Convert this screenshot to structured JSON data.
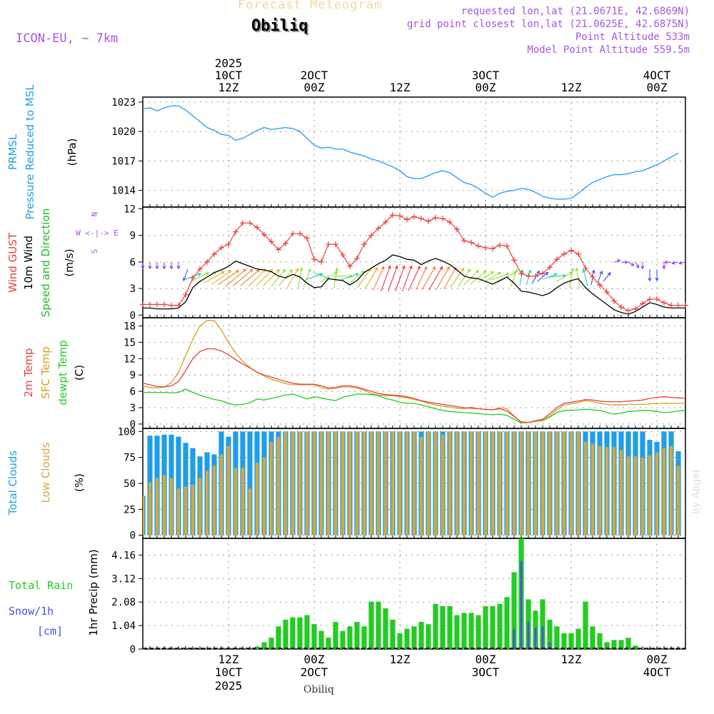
{
  "header": {
    "title": "Forecast Meteogram",
    "location": "Obiliq",
    "model": "ICON-EU, ~ 7km",
    "requested": "requested lon,lat (21.0671E, 42.6869N)",
    "grid_point": "grid point closest lon,lat (21.0625E, 42.6875N)",
    "point_altitude": "Point Altitude 533m",
    "model_altitude": "Model Point Altitude 559.5m",
    "credit": "by Angel",
    "footer": "Obiliq"
  },
  "colors": {
    "pressure": "#1f9ee8",
    "gust": "#e84040",
    "wind": "#000000",
    "direction": "#22bb22",
    "temp2m": "#e84040",
    "sfc": "#d4a020",
    "dewpt": "#22cc22",
    "total_clouds": "#1f9ee8",
    "low_clouds": "#d4a840",
    "rain": "#22cc22",
    "snow": "#4455dd",
    "purple": "#aa55dd"
  },
  "time_axis": {
    "top_year": "2025",
    "ticks": [
      {
        "h": 12,
        "top1": "10CT",
        "top2": "12Z",
        "bot1": "12Z",
        "bot2": "10CT",
        "bot3": "2025"
      },
      {
        "h": 24,
        "top1": "2OCT",
        "top2": "00Z",
        "bot1": "00Z",
        "bot2": "2OCT",
        "bot3": ""
      },
      {
        "h": 36,
        "top1": "",
        "top2": "12Z",
        "bot1": "12Z",
        "bot2": "",
        "bot3": ""
      },
      {
        "h": 48,
        "top1": "3OCT",
        "top2": "00Z",
        "bot1": "00Z",
        "bot2": "3OCT",
        "bot3": ""
      },
      {
        "h": 60,
        "top1": "",
        "top2": "12Z",
        "bot1": "12Z",
        "bot2": "",
        "bot3": ""
      },
      {
        "h": 72,
        "top1": "4OCT",
        "top2": "00Z",
        "bot1": "00Z",
        "bot2": "4OCT",
        "bot3": ""
      }
    ]
  },
  "chart_data": [
    {
      "type": "line",
      "title": "PRMSL Pressure Reduced to MSL",
      "label_lines": [
        "PRMSL",
        "Pressure Reduced to MSL"
      ],
      "unit": "(hPa)",
      "ylim": [
        1012.3,
        1023.5
      ],
      "yticks": [
        1014,
        1017,
        1020,
        1023
      ],
      "hours_start": 0,
      "series": [
        {
          "name": "PRMSL",
          "values": [
            1022.3,
            1022.4,
            1022.1,
            1022.4,
            1022.6,
            1022.6,
            1022.2,
            1021.6,
            1021.0,
            1020.4,
            1020.1,
            1019.7,
            1019.6,
            1019.1,
            1019.3,
            1019.7,
            1020.1,
            1020.4,
            1020.2,
            1020.3,
            1020.4,
            1020.3,
            1020.0,
            1019.3,
            1018.6,
            1018.3,
            1018.4,
            1018.2,
            1018.2,
            1017.9,
            1017.7,
            1017.5,
            1017.2,
            1017.0,
            1016.7,
            1016.4,
            1016.0,
            1015.4,
            1015.2,
            1015.2,
            1015.5,
            1015.8,
            1016.0,
            1015.8,
            1015.3,
            1014.8,
            1014.6,
            1014.2,
            1013.7,
            1013.3,
            1013.7,
            1013.9,
            1014.0,
            1014.2,
            1014.1,
            1013.8,
            1013.4,
            1013.2,
            1013.1,
            1013.1,
            1013.2,
            1013.7,
            1014.3,
            1014.8,
            1015.1,
            1015.4,
            1015.6,
            1015.6,
            1015.7,
            1015.9,
            1016.0,
            1016.3,
            1016.6,
            1017.0,
            1017.4,
            1017.8
          ]
        }
      ]
    },
    {
      "type": "line",
      "title": "Wind GUST / 10m Wind Speed and Direction",
      "label_lines": [
        "Wind GUST",
        "10m Wind",
        "Speed and Direction"
      ],
      "unit": "(m/s)",
      "compass": [
        "N",
        "W <-|-> E",
        "S"
      ],
      "ylim": [
        -0.3,
        12.2
      ],
      "yticks": [
        0,
        3,
        6,
        9,
        12
      ],
      "hours_start": 0,
      "series": [
        {
          "name": "Wind GUST",
          "values": [
            1.2,
            1.2,
            1.2,
            1.2,
            1.1,
            1.1,
            2.3,
            4.2,
            5.2,
            6.0,
            6.9,
            7.6,
            8.0,
            9.4,
            10.4,
            10.4,
            9.9,
            9.1,
            8.3,
            7.4,
            8.1,
            9.2,
            9.2,
            8.7,
            6.3,
            6.0,
            8.0,
            8.0,
            6.8,
            5.5,
            6.4,
            8.0,
            9.0,
            9.8,
            10.5,
            11.3,
            11.2,
            10.8,
            11.1,
            10.9,
            10.6,
            11.0,
            10.9,
            10.5,
            9.7,
            8.4,
            8.2,
            7.8,
            7.6,
            7.5,
            7.9,
            7.8,
            6.2,
            4.7,
            4.4,
            4.4,
            4.7,
            5.4,
            6.3,
            6.9,
            7.3,
            6.9,
            5.3,
            4.3,
            3.4,
            2.6,
            1.6,
            0.9,
            0.5,
            0.7,
            1.3,
            1.8,
            1.8,
            1.4,
            1.1,
            1.1,
            1.1
          ]
        },
        {
          "name": "10m Wind",
          "values": [
            0.8,
            0.8,
            0.7,
            0.7,
            0.7,
            0.8,
            1.5,
            3.1,
            3.8,
            4.3,
            4.8,
            5.1,
            5.5,
            6.1,
            5.8,
            5.5,
            5.2,
            5.1,
            4.9,
            4.4,
            4.2,
            4.6,
            4.3,
            3.6,
            3.1,
            3.2,
            4.1,
            4.0,
            3.9,
            3.4,
            3.9,
            4.8,
            5.3,
            5.8,
            6.2,
            6.8,
            6.6,
            6.3,
            6.2,
            5.7,
            6.1,
            6.4,
            6.1,
            5.7,
            5.1,
            4.4,
            4.2,
            4.1,
            3.8,
            3.5,
            3.9,
            4.3,
            3.6,
            2.7,
            2.6,
            2.4,
            2.2,
            2.5,
            3.1,
            3.6,
            3.9,
            4.1,
            3.1,
            2.4,
            1.8,
            1.2,
            0.6,
            0.3,
            0.1,
            0.4,
            0.9,
            1.4,
            1.2,
            0.9,
            0.8,
            0.8,
            0.8
          ]
        }
      ],
      "direction_deg": [
        0,
        0,
        0,
        0,
        0,
        0,
        20,
        250,
        245,
        240,
        240,
        235,
        235,
        230,
        230,
        230,
        225,
        225,
        225,
        220,
        220,
        210,
        190,
        200,
        250,
        290,
        240,
        190,
        270,
        250,
        230,
        215,
        210,
        205,
        200,
        200,
        200,
        200,
        205,
        205,
        210,
        210,
        210,
        210,
        215,
        215,
        225,
        230,
        235,
        240,
        250,
        240,
        200,
        190,
        195,
        210,
        230,
        250,
        265,
        240,
        190,
        170,
        165,
        190,
        200,
        220,
        250,
        270,
        300,
        330,
        360,
        360,
        0,
        0,
        90,
        80,
        80
      ]
    },
    {
      "type": "line",
      "title": "2m Temp / SFC Temp / dewpt Temp",
      "label_lines": [
        "2m Temp",
        "SFC Temp",
        "dewpt Temp"
      ],
      "unit": "(C)",
      "ylim": [
        -0.8,
        19.5
      ],
      "yticks": [
        0,
        3,
        6,
        9,
        12,
        15,
        18
      ],
      "hours_start": 0,
      "series": [
        {
          "name": "2m Temp",
          "values": [
            7.5,
            7.2,
            6.9,
            6.8,
            7.0,
            7.8,
            9.8,
            12.0,
            13.3,
            13.8,
            13.8,
            13.4,
            12.7,
            11.8,
            11.0,
            10.3,
            9.5,
            9.0,
            8.6,
            8.2,
            7.8,
            7.5,
            7.3,
            7.3,
            7.3,
            7.0,
            6.6,
            6.7,
            7.0,
            7.0,
            6.8,
            6.4,
            6.0,
            5.6,
            5.4,
            5.3,
            5.2,
            5.0,
            4.7,
            4.3,
            4.0,
            3.8,
            3.6,
            3.4,
            3.2,
            3.0,
            2.9,
            2.8,
            2.7,
            2.6,
            2.8,
            2.4,
            1.4,
            0.4,
            0.3,
            0.6,
            0.9,
            1.9,
            3.0,
            3.8,
            4.0,
            4.2,
            4.5,
            4.4,
            4.2,
            4.1,
            4.1,
            4.1,
            4.2,
            4.3,
            4.4,
            4.7,
            4.9,
            5.0,
            4.9,
            4.8,
            4.7
          ]
        },
        {
          "name": "SFC Temp",
          "values": [
            7.0,
            6.7,
            6.6,
            6.8,
            7.6,
            9.5,
            12.5,
            15.5,
            18.0,
            19.0,
            19.0,
            17.2,
            15.0,
            13.0,
            11.5,
            10.4,
            9.5,
            8.8,
            8.2,
            7.8,
            7.4,
            7.2,
            7.2,
            7.2,
            7.2,
            6.7,
            6.4,
            6.6,
            6.8,
            6.8,
            6.6,
            6.2,
            5.6,
            5.3,
            5.2,
            5.2,
            5.0,
            4.8,
            4.5,
            4.2,
            3.8,
            3.5,
            3.3,
            3.1,
            2.9,
            2.8,
            3.1,
            2.8,
            2.7,
            2.6,
            3.0,
            2.8,
            1.5,
            0.3,
            0.3,
            0.5,
            0.7,
            1.5,
            2.6,
            3.5,
            3.7,
            3.9,
            4.3,
            4.1,
            3.8,
            3.6,
            3.5,
            3.5,
            3.6,
            3.6,
            3.6,
            3.7,
            3.8,
            3.8,
            3.8,
            3.8,
            3.8
          ]
        },
        {
          "name": "dewpt Temp",
          "values": [
            5.8,
            5.8,
            5.8,
            5.8,
            5.7,
            5.8,
            6.4,
            5.8,
            5.3,
            4.9,
            4.5,
            4.3,
            3.8,
            3.5,
            3.6,
            3.9,
            4.6,
            4.4,
            4.7,
            5.0,
            5.3,
            5.5,
            5.1,
            4.6,
            5.0,
            4.8,
            4.5,
            4.3,
            4.9,
            5.2,
            5.5,
            5.5,
            5.4,
            5.2,
            4.7,
            4.4,
            4.0,
            3.8,
            3.8,
            3.5,
            3.2,
            2.8,
            2.5,
            2.3,
            2.2,
            2.1,
            2.0,
            1.9,
            1.8,
            1.7,
            1.8,
            1.6,
            0.9,
            0.2,
            0.3,
            0.5,
            0.6,
            1.3,
            2.1,
            2.5,
            2.5,
            2.6,
            2.7,
            2.6,
            2.5,
            2.1,
            1.8,
            2.0,
            2.3,
            2.4,
            2.5,
            2.5,
            2.3,
            2.1,
            2.2,
            2.4,
            2.5
          ]
        }
      ]
    },
    {
      "type": "bar",
      "title": "Total Clouds / Low Clouds",
      "label_lines": [
        "Total Clouds",
        "Low Clouds"
      ],
      "unit": "(%)",
      "ylim": [
        -3,
        103
      ],
      "yticks": [
        0,
        25,
        50,
        75,
        100
      ],
      "hours_start": 0,
      "series": [
        {
          "name": "Total Clouds",
          "values": [
            38,
            96,
            96,
            97,
            97,
            95,
            89,
            84,
            76,
            80,
            78,
            100,
            95,
            100,
            100,
            100,
            100,
            100,
            100,
            100,
            100,
            100,
            100,
            100,
            100,
            100,
            100,
            100,
            100,
            100,
            100,
            100,
            100,
            100,
            100,
            100,
            100,
            100,
            100,
            100,
            100,
            100,
            100,
            100,
            100,
            100,
            100,
            100,
            100,
            100,
            100,
            100,
            100,
            100,
            100,
            100,
            100,
            100,
            100,
            100,
            100,
            100,
            100,
            100,
            100,
            100,
            100,
            100,
            100,
            100,
            100,
            92,
            90,
            100,
            100,
            81
          ]
        },
        {
          "name": "Low Clouds",
          "values": [
            38,
            51,
            55,
            58,
            55,
            45,
            47,
            49,
            55,
            62,
            67,
            78,
            86,
            65,
            65,
            45,
            70,
            75,
            90,
            95,
            100,
            100,
            100,
            100,
            100,
            100,
            100,
            100,
            100,
            100,
            100,
            100,
            100,
            100,
            100,
            100,
            100,
            100,
            100,
            95,
            100,
            100,
            97,
            100,
            100,
            100,
            100,
            100,
            100,
            100,
            100,
            100,
            100,
            100,
            100,
            100,
            100,
            100,
            100,
            100,
            100,
            100,
            90,
            88,
            86,
            85,
            85,
            82,
            76,
            76,
            75,
            77,
            80,
            84,
            86,
            67
          ]
        }
      ]
    },
    {
      "type": "bar",
      "title": "Total Rain / Snow 1hr Precip",
      "label_lines": [
        "Total  Rain",
        "Snow/1h",
        "[cm]"
      ],
      "unit": "1hr Precip (mm)",
      "ylim": [
        0,
        4.9
      ],
      "yticks": [
        0,
        1.04,
        2.08,
        3.12,
        4.16
      ],
      "ytick_labels": [
        "0",
        "1.04",
        "2.08",
        "3.12",
        "4.16"
      ],
      "hours_start": 1,
      "series": [
        {
          "name": "Total Rain",
          "values": [
            0,
            0,
            0,
            0,
            0,
            0,
            0,
            0,
            0,
            0,
            0,
            0,
            0,
            0,
            0,
            0.1,
            0.3,
            0.5,
            1.0,
            1.3,
            1.4,
            1.4,
            1.5,
            1.1,
            0.8,
            0.5,
            1.2,
            0.8,
            1.0,
            1.2,
            1.0,
            2.1,
            2.1,
            1.8,
            1.3,
            0.7,
            0.9,
            1.0,
            1.2,
            1.1,
            2.0,
            1.9,
            1.9,
            1.5,
            1.6,
            1.6,
            1.5,
            1.9,
            1.9,
            2.0,
            2.3,
            3.4,
            4.9,
            2.2,
            1.7,
            2.2,
            1.3,
            1.0,
            0.7,
            0.7,
            0.9,
            2.1,
            1.0,
            0.7,
            0.3,
            0.4,
            0.4,
            0.5,
            0.15,
            0.05,
            0,
            0,
            0,
            0,
            0
          ]
        },
        {
          "name": "Snow/1h",
          "values": [
            0,
            0,
            0,
            0,
            0,
            0,
            0,
            0,
            0,
            0,
            0,
            0,
            0,
            0,
            0,
            0,
            0,
            0,
            0,
            0,
            0,
            0,
            0,
            0,
            0,
            0,
            0,
            0,
            0,
            0,
            0,
            0,
            0,
            0,
            0,
            0,
            0,
            0,
            0,
            0,
            0,
            0,
            0,
            0,
            0,
            0,
            0,
            0,
            0,
            0,
            0,
            0.9,
            3.9,
            1.2,
            0.95,
            1.0,
            0.3,
            0,
            0,
            0,
            0,
            0,
            0,
            0,
            0,
            0,
            0,
            0,
            0,
            0,
            0,
            0,
            0,
            0,
            0
          ]
        }
      ]
    }
  ]
}
